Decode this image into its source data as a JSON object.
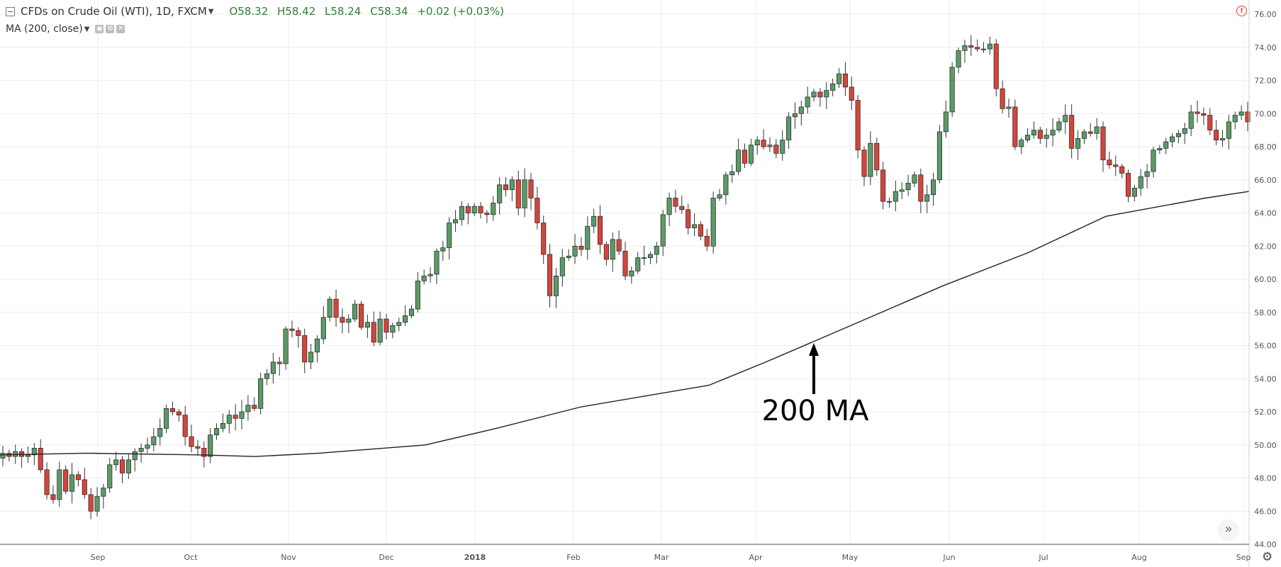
{
  "header": {
    "symbol": "CFDs on Crude Oil (WTI), 1D, FXCM",
    "open": "O58.32",
    "high": "H58.42",
    "low": "L58.24",
    "close": "C58.34",
    "change": "+0.02 (+0.03%)",
    "change_color": "#2e7d32"
  },
  "indicator": {
    "label": "MA (200, close)",
    "buttons": [
      "eye-icon",
      "settings-icon",
      "close-icon"
    ]
  },
  "chart_data": {
    "type": "candlestick",
    "y_axis": {
      "min": 44,
      "max": 76,
      "ticks": [
        "44.00",
        "46.00",
        "48.00",
        "50.00",
        "52.00",
        "54.00",
        "56.00",
        "58.00",
        "60.00",
        "62.00",
        "64.00",
        "66.00",
        "68.00",
        "70.00",
        "72.00",
        "74.00",
        "76.00"
      ],
      "position": "right"
    },
    "x_axis": {
      "labels": [
        "Sep",
        "Oct",
        "Nov",
        "Dec",
        "2018",
        "Feb",
        "Mar",
        "Apr",
        "May",
        "Jun",
        "Jul",
        "Aug",
        "Sep"
      ]
    },
    "grid": true,
    "up_color": "#5b9a68",
    "down_color": "#d4453b",
    "ma_color": "#222222",
    "annotation": {
      "text": "200 MA",
      "points_to": "moving-average-line"
    },
    "close_path": [
      49.5,
      49.3,
      49.6,
      49.3,
      49.4,
      49.8,
      48.5,
      47,
      46.7,
      48.5,
      47.2,
      48.2,
      47.9,
      47,
      46,
      46.9,
      47.4,
      48.8,
      49.1,
      48.3,
      49.1,
      49.6,
      49.8,
      50,
      50.5,
      51,
      52.2,
      52,
      51.8,
      50.5,
      49.9,
      49.8,
      49.3,
      50.6,
      51,
      51.3,
      51.8,
      51.6,
      52,
      52.4,
      52.2,
      54,
      54.3,
      55,
      54.9,
      57,
      56.9,
      56.6,
      55,
      55.6,
      56.4,
      57.7,
      58.8,
      57.7,
      57.4,
      57.6,
      58.5,
      57.1,
      57.4,
      56.2,
      57.6,
      56.8,
      57.2,
      57.4,
      57.8,
      58.2,
      59.9,
      60.2,
      60.3,
      61.7,
      61.9,
      63.4,
      63.6,
      64.4,
      64,
      64.4,
      64,
      63.9,
      64.6,
      65.7,
      65.4,
      66,
      64.3,
      66,
      64.9,
      63.4,
      61.5,
      59,
      60.2,
      61.3,
      61.4,
      62,
      61.8,
      63.2,
      63.8,
      62.1,
      61.2,
      62.4,
      61.7,
      60.2,
      60.5,
      61.3,
      61.3,
      61.5,
      62,
      63.9,
      64.9,
      64.4,
      64.2,
      63.1,
      63.3,
      62.6,
      62,
      64.9,
      65.1,
      66.3,
      66.5,
      67.8,
      67,
      68.1,
      68.4,
      68,
      68.1,
      67.6,
      68.4,
      69.8,
      70,
      70.4,
      71,
      71.3,
      71,
      71.4,
      71.8,
      72.4,
      71.6,
      70.8,
      67.8,
      66.2,
      68.2,
      66.6,
      64.7,
      64.7,
      65.3,
      65.4,
      65.8,
      66.3,
      64.7,
      65.1,
      66,
      68.9,
      70.1,
      72.8,
      73.8,
      74.1,
      74,
      73.9,
      73.9,
      74.2,
      71.5,
      70.3,
      70.4,
      68,
      68.4,
      68.7,
      69,
      68.5,
      68.7,
      69,
      69.5,
      69.9,
      67.9,
      68.5,
      68.9,
      68.8,
      69.2,
      67.2,
      66.9,
      66.8,
      66.4,
      65,
      65.5,
      66.2,
      66.5,
      67.8,
      67.9,
      68.3,
      68.6,
      68.8,
      69.1,
      70.1,
      70,
      69.9,
      69,
      68.4,
      68.5,
      69.5,
      69.9,
      70.1,
      69.5
    ]
  }
}
